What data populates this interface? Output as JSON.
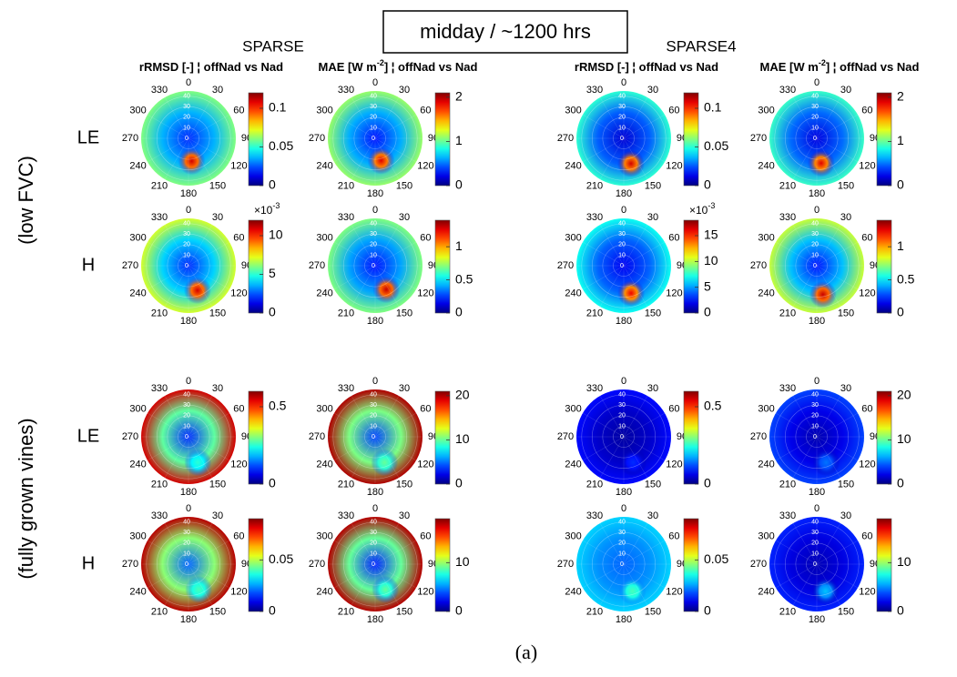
{
  "header": {
    "left": "SPARSE",
    "center": "midday / ~1200 hrs",
    "right": "SPARSE4"
  },
  "column_titles": [
    {
      "text": "rRMSD [-] ¦ offNad vs Nad"
    },
    {
      "text": "MAE [W m",
      "sup": "-2",
      "tail": "] ¦ offNad vs Nad"
    },
    {
      "text": "rRMSD [-] ¦ offNad vs Nad"
    },
    {
      "text": "MAE [W m",
      "sup": "-2",
      "tail": "] ¦ offNad vs Nad"
    }
  ],
  "row_labels": [
    "LE",
    "H",
    "LE",
    "H"
  ],
  "group_labels": [
    "(low FVC)",
    "(fully grown vines)"
  ],
  "caption": "(a)",
  "polar_axis": {
    "theta_ticks": [
      0,
      30,
      60,
      90,
      120,
      150,
      180,
      210,
      240,
      270,
      300,
      330
    ],
    "r_ticks": [
      0,
      10,
      20,
      30,
      40
    ],
    "rlim": [
      0,
      45
    ]
  },
  "chart_data": [
    {
      "type": "polar-heatmap",
      "clim": [
        0,
        0.12
      ],
      "cticks": [
        0,
        0.05,
        0.1
      ],
      "field": {
        "center": 0.02,
        "rim": 0.06,
        "hotspot": {
          "azimuth": 172,
          "zenith": 22,
          "value": 0.11
        }
      }
    },
    {
      "type": "polar-heatmap",
      "clim": [
        0,
        2.1
      ],
      "cticks": [
        0,
        1,
        2
      ],
      "field": {
        "center": 0.3,
        "rim": 1.1,
        "hotspot": {
          "azimuth": 165,
          "zenith": 22,
          "value": 1.9
        }
      }
    },
    {
      "type": "polar-heatmap",
      "clim": [
        0,
        0.12
      ],
      "cticks": [
        0,
        0.05,
        0.1
      ],
      "field": {
        "center": 0.01,
        "rim": 0.05,
        "hotspot": {
          "azimuth": 164,
          "zenith": 25,
          "value": 0.11
        }
      }
    },
    {
      "type": "polar-heatmap",
      "clim": [
        0,
        2.1
      ],
      "cticks": [
        0,
        1,
        2
      ],
      "field": {
        "center": 0.2,
        "rim": 0.9,
        "hotspot": {
          "azimuth": 170,
          "zenith": 24,
          "value": 1.9
        }
      }
    },
    {
      "type": "polar-heatmap",
      "clim": [
        0,
        12
      ],
      "cticks": [
        0,
        5,
        10
      ],
      "multiplier": {
        "base": "×10",
        "exponent": "-3"
      },
      "field": {
        "center": 2,
        "rim": 7,
        "hotspot": {
          "azimuth": 160,
          "zenith": 25,
          "value": 11
        }
      }
    },
    {
      "type": "polar-heatmap",
      "clim": [
        0,
        1.4
      ],
      "cticks": [
        0,
        0.5,
        1
      ],
      "field": {
        "center": 0.2,
        "rim": 0.7,
        "hotspot": {
          "azimuth": 155,
          "zenith": 25,
          "value": 1.3
        }
      }
    },
    {
      "type": "polar-heatmap",
      "clim": [
        0,
        18
      ],
      "cticks": [
        0,
        5,
        10,
        15
      ],
      "multiplier": {
        "base": "×10",
        "exponent": "-3"
      },
      "field": {
        "center": 2,
        "rim": 7,
        "hotspot": {
          "azimuth": 165,
          "zenith": 27,
          "value": 16
        }
      }
    },
    {
      "type": "polar-heatmap",
      "clim": [
        0,
        1.4
      ],
      "cticks": [
        0,
        0.5,
        1
      ],
      "field": {
        "center": 0.2,
        "rim": 0.8,
        "hotspot": {
          "azimuth": 168,
          "zenith": 28,
          "value": 1.3
        }
      }
    },
    {
      "type": "polar-heatmap",
      "clim": [
        0,
        0.6
      ],
      "cticks": [
        0,
        0.5
      ],
      "field": {
        "center": 0.1,
        "rim": 0.55,
        "hotspot": {
          "azimuth": 160,
          "zenith": 26,
          "value": 0.25
        }
      }
    },
    {
      "type": "polar-heatmap",
      "clim": [
        0,
        21
      ],
      "cticks": [
        0,
        10,
        20
      ],
      "field": {
        "center": 4,
        "rim": 20,
        "hotspot": {
          "azimuth": 160,
          "zenith": 26,
          "value": 10
        }
      }
    },
    {
      "type": "polar-heatmap",
      "clim": [
        0,
        0.6
      ],
      "cticks": [
        0,
        0.5
      ],
      "field": {
        "center": 0.02,
        "rim": 0.08,
        "hotspot": {
          "azimuth": 160,
          "zenith": 26,
          "value": 0.1
        }
      }
    },
    {
      "type": "polar-heatmap",
      "clim": [
        0,
        21
      ],
      "cticks": [
        0,
        10,
        20
      ],
      "field": {
        "center": 1,
        "rim": 4,
        "hotspot": {
          "azimuth": 160,
          "zenith": 26,
          "value": 5
        }
      }
    },
    {
      "type": "polar-heatmap",
      "clim": [
        0,
        0.09
      ],
      "cticks": [
        0,
        0.05
      ],
      "field": {
        "center": 0.02,
        "rim": 0.085,
        "hotspot": {
          "azimuth": 158,
          "zenith": 26,
          "value": 0.04
        }
      }
    },
    {
      "type": "polar-heatmap",
      "clim": [
        0,
        19
      ],
      "cticks": [
        0,
        10
      ],
      "field": {
        "center": 3,
        "rim": 18,
        "hotspot": {
          "azimuth": 158,
          "zenith": 26,
          "value": 9
        }
      }
    },
    {
      "type": "polar-heatmap",
      "clim": [
        0,
        0.09
      ],
      "cticks": [
        0,
        0.05
      ],
      "field": {
        "center": 0.02,
        "rim": 0.03,
        "hotspot": {
          "azimuth": 162,
          "zenith": 27,
          "value": 0.04
        }
      }
    },
    {
      "type": "polar-heatmap",
      "clim": [
        0,
        19
      ],
      "cticks": [
        0,
        10
      ],
      "field": {
        "center": 1,
        "rim": 3,
        "hotspot": {
          "azimuth": 162,
          "zenith": 27,
          "value": 6
        }
      }
    }
  ]
}
